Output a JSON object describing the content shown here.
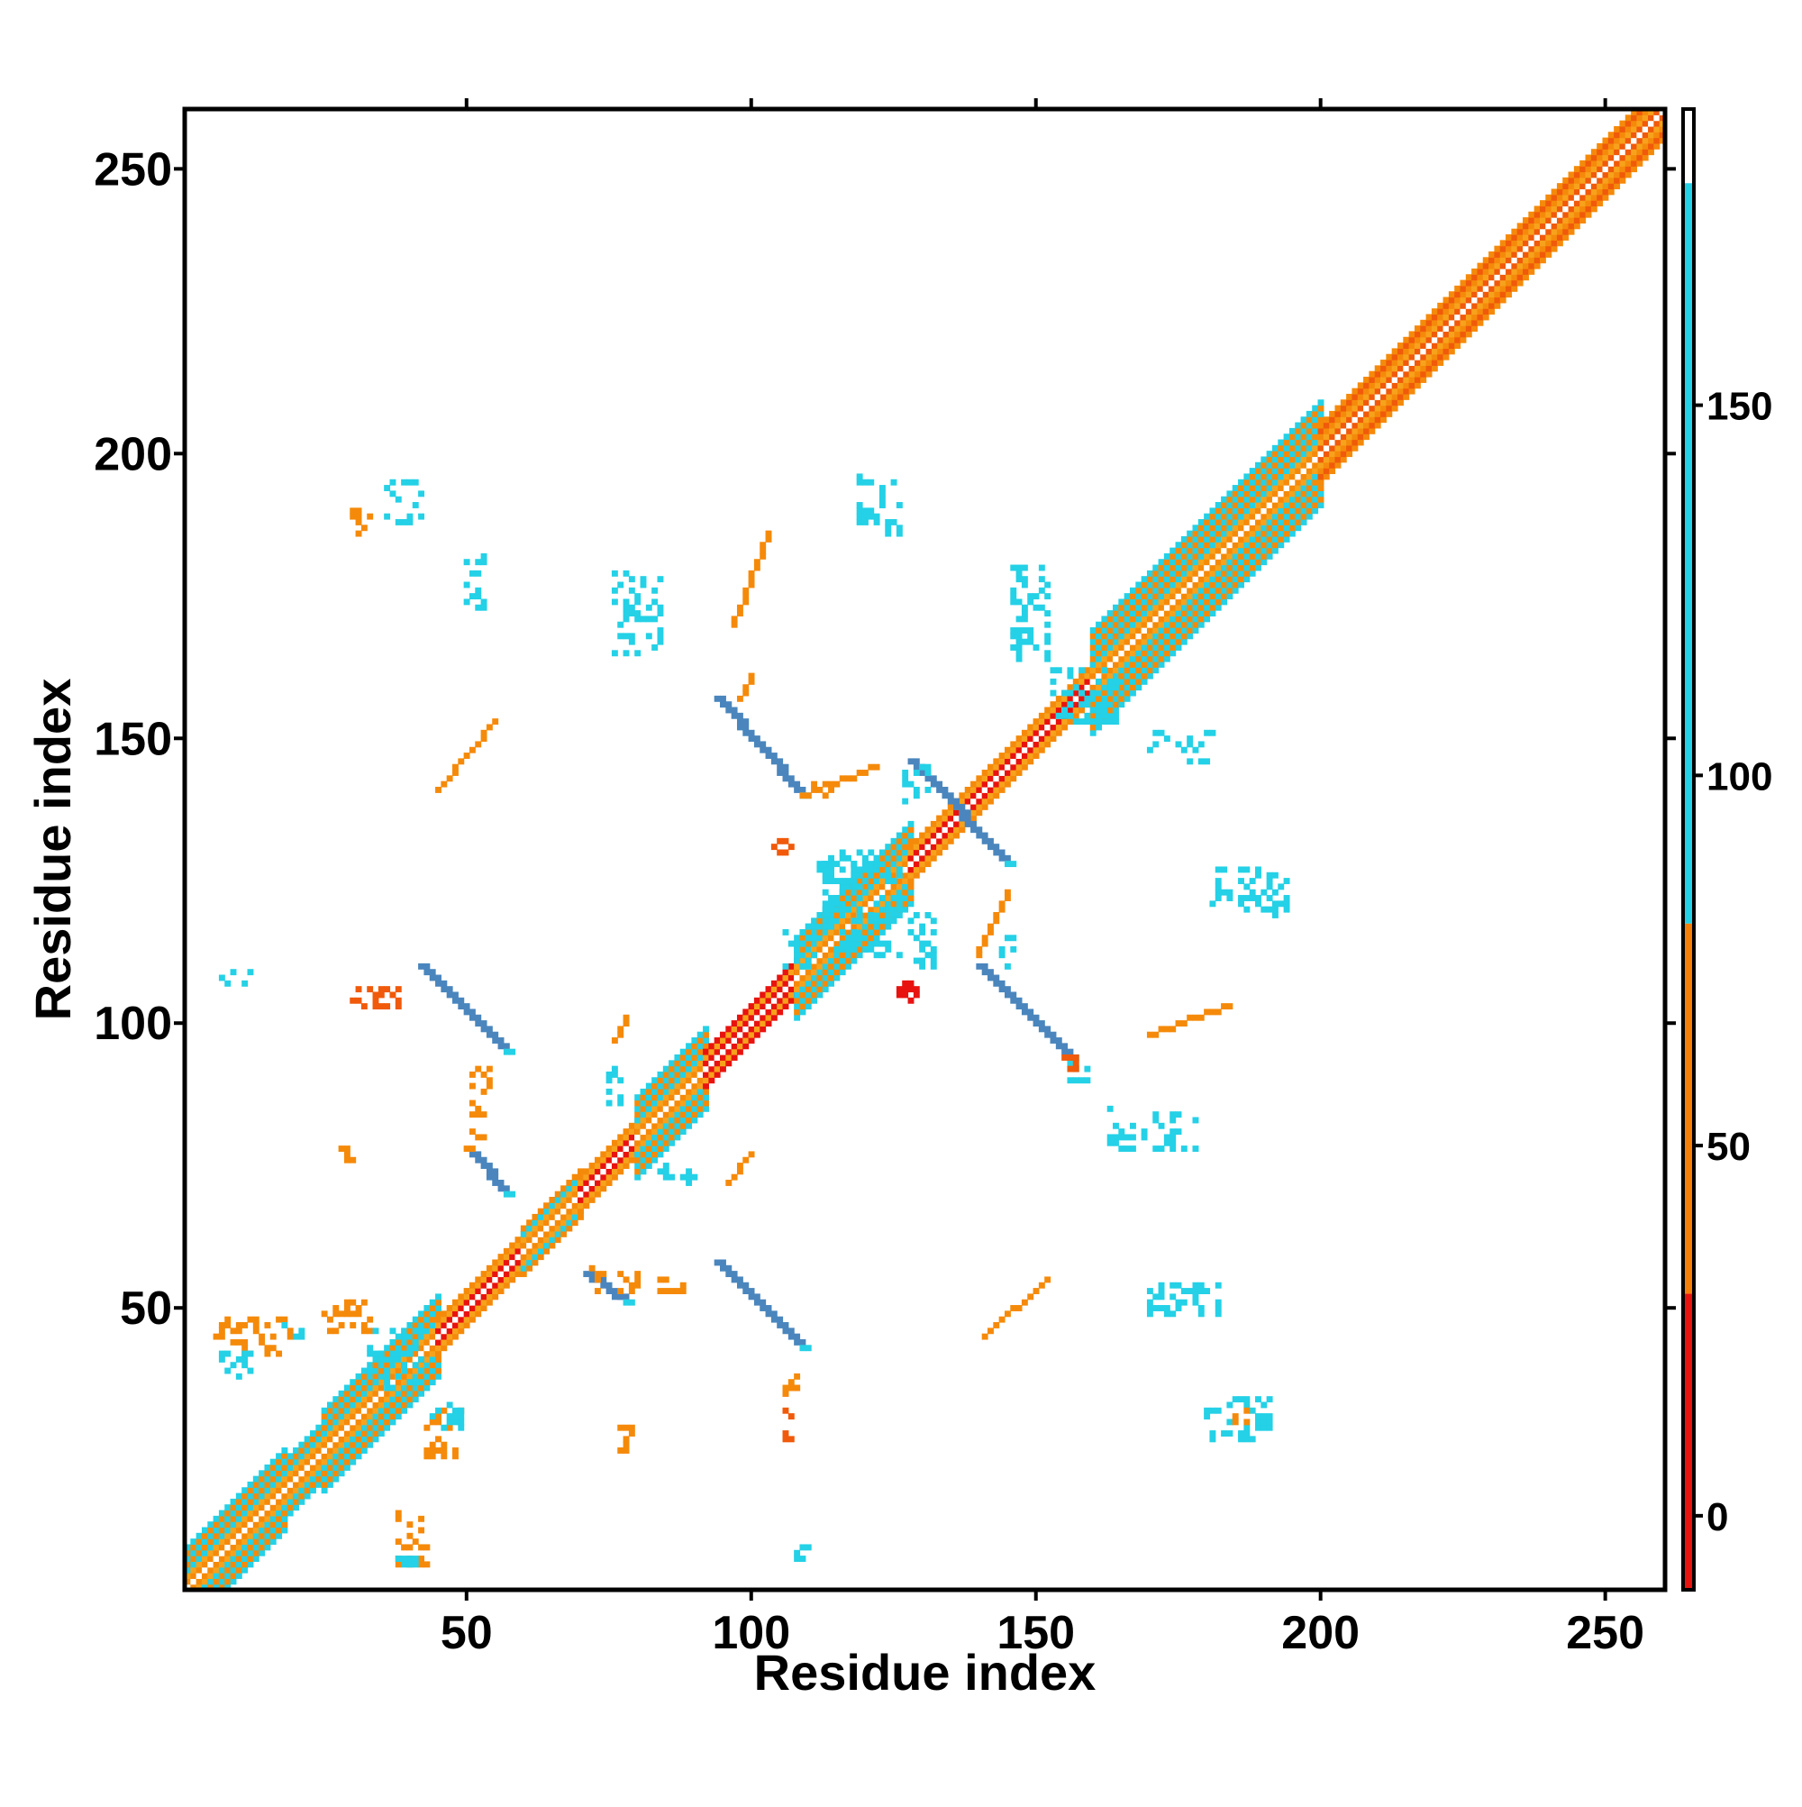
{
  "chart_data": {
    "type": "heatmap",
    "title": "",
    "xlabel": "Residue index",
    "ylabel": "Residue index",
    "xlim": [
      1,
      260
    ],
    "ylim": [
      1,
      260
    ],
    "x_ticks": [
      50,
      100,
      150,
      200,
      250
    ],
    "y_ticks": [
      50,
      100,
      150,
      200,
      250
    ],
    "colorbar": {
      "range": [
        -10,
        190
      ],
      "ticks": [
        0,
        50,
        100,
        150
      ],
      "bands": [
        {
          "from": -10,
          "to": 30,
          "color": "#e8130f"
        },
        {
          "from": 30,
          "to": 80,
          "color": "#f47f09"
        },
        {
          "from": 80,
          "to": 180,
          "color": "#24d1e6"
        },
        {
          "from": 180,
          "to": 190,
          "color": "#ffffff"
        }
      ]
    },
    "palette": {
      "red": "#e8130f",
      "red_orange": "#f05a0a",
      "orange": "#f58a0a",
      "light_orange": "#f7a21c",
      "cyan": "#24d1e6",
      "steel_blue": "#4a86bd"
    },
    "diagonal": {
      "from": 1,
      "to": 260,
      "segments": [
        {
          "from": 1,
          "to": 18,
          "core": "orange",
          "side": "cyan",
          "width": 7
        },
        {
          "from": 18,
          "to": 25,
          "core": "orange",
          "side": "cyan",
          "width": 5
        },
        {
          "from": 25,
          "to": 45,
          "core": "orange",
          "side": "cyan",
          "width": 7
        },
        {
          "from": 45,
          "to": 60,
          "core": "red",
          "side": "orange",
          "width": 3
        },
        {
          "from": 60,
          "to": 70,
          "core": "orange",
          "side": "cyan",
          "width": 4
        },
        {
          "from": 70,
          "to": 80,
          "core": "red",
          "side": "orange",
          "width": 3
        },
        {
          "from": 80,
          "to": 92,
          "core": "orange",
          "side": "cyan",
          "width": 7
        },
        {
          "from": 92,
          "to": 108,
          "core": "red",
          "side": "red",
          "width": 3
        },
        {
          "from": 108,
          "to": 128,
          "core": "orange",
          "side": "cyan",
          "width": 7
        },
        {
          "from": 128,
          "to": 160,
          "core": "red",
          "side": "orange",
          "width": 3
        },
        {
          "from": 160,
          "to": 200,
          "core": "orange",
          "side": "cyan",
          "width": 9
        },
        {
          "from": 200,
          "to": 260,
          "core": "red_orange",
          "side": "orange",
          "width": 5
        }
      ]
    },
    "strands": [
      {
        "x0": 94,
        "y0": 157,
        "x1": 109,
        "y1": 140,
        "width": 2,
        "color": "steel_blue"
      },
      {
        "x0": 128,
        "y0": 146,
        "x1": 145,
        "y1": 128,
        "width": 2,
        "color": "steel_blue"
      },
      {
        "x0": 42,
        "y0": 110,
        "x1": 57,
        "y1": 95,
        "width": 2,
        "color": "steel_blue"
      },
      {
        "x0": 140,
        "y0": 110,
        "x1": 156,
        "y1": 94,
        "width": 2,
        "color": "steel_blue"
      },
      {
        "x0": 94,
        "y0": 58,
        "x1": 109,
        "y1": 43,
        "width": 2,
        "color": "steel_blue"
      },
      {
        "x0": 71,
        "y0": 56,
        "x1": 78,
        "y1": 51,
        "width": 2,
        "color": "steel_blue"
      },
      {
        "x0": 51,
        "y0": 77,
        "x1": 57,
        "y1": 70,
        "width": 2,
        "color": "steel_blue"
      },
      {
        "x0": 109,
        "y0": 140,
        "x1": 122,
        "y1": 145,
        "width": 1,
        "color": "orange"
      },
      {
        "x0": 45,
        "y0": 141,
        "x1": 55,
        "y1": 153,
        "width": 1,
        "color": "orange"
      },
      {
        "x0": 141,
        "y0": 45,
        "x1": 152,
        "y1": 55,
        "width": 1,
        "color": "orange"
      },
      {
        "x0": 170,
        "y0": 98,
        "x1": 184,
        "y1": 103,
        "width": 1,
        "color": "orange"
      },
      {
        "x0": 140,
        "y0": 112,
        "x1": 145,
        "y1": 123,
        "width": 1,
        "color": "orange"
      },
      {
        "x0": 96,
        "y0": 72,
        "x1": 100,
        "y1": 77,
        "width": 1,
        "color": "orange"
      },
      {
        "x0": 76,
        "y0": 97,
        "x1": 78,
        "y1": 101,
        "width": 1,
        "color": "orange"
      },
      {
        "x0": 97,
        "y0": 170,
        "x1": 103,
        "y1": 186,
        "width": 1,
        "color": "orange"
      },
      {
        "x0": 98,
        "y0": 157,
        "x1": 100,
        "y1": 161,
        "width": 1,
        "color": "orange"
      }
    ],
    "clusters": [
      {
        "x": 36,
        "y": 188,
        "w": 7,
        "h": 8,
        "color": "cyan"
      },
      {
        "x": 30,
        "y": 186,
        "w": 4,
        "h": 5,
        "color": "orange"
      },
      {
        "x": 50,
        "y": 171,
        "w": 4,
        "h": 12,
        "color": "cyan"
      },
      {
        "x": 76,
        "y": 165,
        "w": 9,
        "h": 15,
        "color": "cyan"
      },
      {
        "x": 119,
        "y": 186,
        "w": 8,
        "h": 11,
        "color": "cyan"
      },
      {
        "x": 146,
        "y": 164,
        "w": 7,
        "h": 17,
        "color": "cyan"
      },
      {
        "x": 153,
        "y": 153,
        "w": 12,
        "h": 10,
        "color": "cyan"
      },
      {
        "x": 170,
        "y": 146,
        "w": 12,
        "h": 6,
        "color": "cyan"
      },
      {
        "x": 181,
        "y": 120,
        "w": 14,
        "h": 8,
        "color": "cyan"
      },
      {
        "x": 113,
        "y": 112,
        "w": 14,
        "h": 18,
        "color": "cyan"
      },
      {
        "x": 106,
        "y": 110,
        "w": 6,
        "h": 8,
        "color": "cyan"
      },
      {
        "x": 112,
        "y": 127,
        "w": 10,
        "h": 4,
        "color": "cyan"
      },
      {
        "x": 128,
        "y": 110,
        "w": 5,
        "h": 10,
        "color": "cyan"
      },
      {
        "x": 126,
        "y": 102,
        "w": 4,
        "h": 6,
        "color": "red"
      },
      {
        "x": 104,
        "y": 129,
        "w": 4,
        "h": 4,
        "color": "red_orange"
      },
      {
        "x": 7,
        "y": 107,
        "w": 6,
        "h": 3,
        "color": "cyan"
      },
      {
        "x": 30,
        "y": 103,
        "w": 9,
        "h": 4,
        "color": "red_orange"
      },
      {
        "x": 75,
        "y": 84,
        "w": 3,
        "h": 9,
        "color": "cyan"
      },
      {
        "x": 51,
        "y": 84,
        "w": 4,
        "h": 9,
        "color": "orange"
      },
      {
        "x": 156,
        "y": 89,
        "w": 4,
        "h": 5,
        "color": "cyan"
      },
      {
        "x": 163,
        "y": 78,
        "w": 16,
        "h": 8,
        "color": "cyan"
      },
      {
        "x": 27,
        "y": 76,
        "w": 4,
        "h": 3,
        "color": "orange"
      },
      {
        "x": 50,
        "y": 78,
        "w": 4,
        "h": 4,
        "color": "orange"
      },
      {
        "x": 84,
        "y": 72,
        "w": 7,
        "h": 4,
        "color": "cyan"
      },
      {
        "x": 170,
        "y": 49,
        "w": 13,
        "h": 6,
        "color": "cyan"
      },
      {
        "x": 6,
        "y": 42,
        "w": 14,
        "h": 7,
        "color": "orange"
      },
      {
        "x": 7,
        "y": 38,
        "w": 6,
        "h": 5,
        "color": "cyan"
      },
      {
        "x": 18,
        "y": 45,
        "w": 4,
        "h": 4,
        "color": "cyan"
      },
      {
        "x": 25,
        "y": 46,
        "w": 9,
        "h": 6,
        "color": "orange"
      },
      {
        "x": 33,
        "y": 35,
        "w": 10,
        "h": 12,
        "color": "cyan"
      },
      {
        "x": 43,
        "y": 24,
        "w": 7,
        "h": 9,
        "color": "orange"
      },
      {
        "x": 44,
        "y": 29,
        "w": 6,
        "h": 5,
        "color": "cyan"
      },
      {
        "x": 77,
        "y": 25,
        "w": 3,
        "h": 5,
        "color": "orange"
      },
      {
        "x": 105,
        "y": 27,
        "w": 4,
        "h": 10,
        "color": "red_orange"
      },
      {
        "x": 106,
        "y": 35,
        "w": 3,
        "h": 4,
        "color": "orange"
      },
      {
        "x": 180,
        "y": 27,
        "w": 12,
        "h": 8,
        "color": "cyan"
      },
      {
        "x": 184,
        "y": 29,
        "w": 5,
        "h": 4,
        "color": "orange"
      },
      {
        "x": 38,
        "y": 5,
        "w": 6,
        "h": 10,
        "color": "orange"
      },
      {
        "x": 38,
        "y": 4,
        "w": 4,
        "h": 3,
        "color": "cyan"
      },
      {
        "x": 108,
        "y": 6,
        "w": 3,
        "h": 4,
        "color": "cyan"
      },
      {
        "x": 72,
        "y": 52,
        "w": 9,
        "h": 6,
        "color": "orange"
      },
      {
        "x": 84,
        "y": 53,
        "w": 5,
        "h": 3,
        "color": "orange"
      },
      {
        "x": 127,
        "y": 139,
        "w": 5,
        "h": 8,
        "color": "cyan"
      },
      {
        "x": 111,
        "y": 140,
        "w": 5,
        "h": 3,
        "color": "orange"
      },
      {
        "x": 144,
        "y": 110,
        "w": 4,
        "h": 6,
        "color": "cyan"
      },
      {
        "x": 155,
        "y": 92,
        "w": 6,
        "h": 4,
        "color": "red_orange"
      },
      {
        "x": 192,
        "y": 119,
        "w": 4,
        "h": 3,
        "color": "cyan"
      }
    ]
  }
}
